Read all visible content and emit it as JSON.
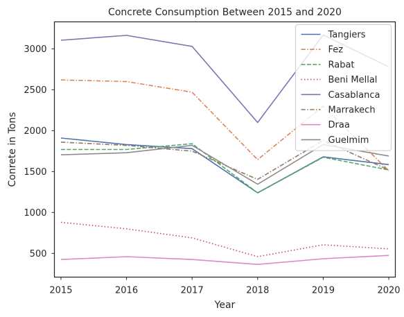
{
  "chart_data": {
    "type": "line",
    "title": "Concrete Consumption Between 2015 and 2020",
    "xlabel": "Year",
    "ylabel": "Conrete in Tons",
    "x": [
      "2015",
      "2016",
      "2017",
      "2018",
      "2019",
      "2020"
    ],
    "xlim": [
      2014.9,
      2020.1
    ],
    "ylim": [
      210,
      3330
    ],
    "yticks": [
      500,
      1000,
      1500,
      2000,
      2500,
      3000
    ],
    "grid": false,
    "legend_position": "top-right",
    "series": [
      {
        "name": "Tangiers",
        "values": [
          1910,
          1830,
          1780,
          1240,
          1680,
          1585
        ],
        "color": "#4c72b0",
        "dash": "solid"
      },
      {
        "name": "Fez",
        "values": [
          2620,
          2600,
          2470,
          1645,
          2300,
          1510
        ],
        "color": "#dd8452",
        "dash": "dashdot"
      },
      {
        "name": "Rabat",
        "values": [
          1770,
          1770,
          1840,
          1240,
          1675,
          1520
        ],
        "color": "#55a868",
        "dash": "dashed"
      },
      {
        "name": "Beni Mellal",
        "values": [
          880,
          800,
          690,
          460,
          605,
          555
        ],
        "color": "#c44e52",
        "dash": "dotted"
      },
      {
        "name": "Casablanca",
        "values": [
          3105,
          3165,
          3030,
          2100,
          3170,
          2780
        ],
        "color": "#8172b3",
        "dash": "solid"
      },
      {
        "name": "Marrakech",
        "values": [
          1860,
          1820,
          1750,
          1405,
          1880,
          1520
        ],
        "color": "#937860",
        "dash": "dashdot"
      },
      {
        "name": "Draa",
        "values": [
          425,
          460,
          425,
          365,
          435,
          475
        ],
        "color": "#da8bc3",
        "dash": "solid"
      },
      {
        "name": "Guelmim",
        "values": [
          1705,
          1730,
          1820,
          1345,
          1830,
          1690
        ],
        "color": "#8c8c8c",
        "dash": "solid"
      }
    ]
  }
}
